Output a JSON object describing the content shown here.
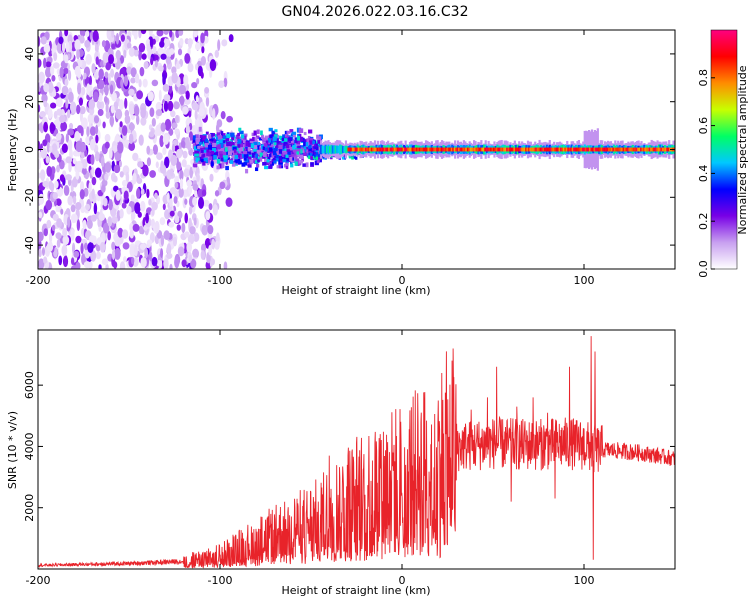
{
  "title": "GN04.2026.022.03.16.C32",
  "chart_data": [
    {
      "type": "heatmap",
      "name": "spectrogram",
      "xlabel": "Height of straight line (km)",
      "ylabel": "Frequency (Hz)",
      "xlim": [
        -200,
        150
      ],
      "ylim": [
        -50,
        50
      ],
      "xticks": [
        -200,
        -100,
        0,
        100
      ],
      "xtick_labels": [
        "-200",
        "-100",
        "0",
        "100"
      ],
      "yticks": [
        -40,
        -20,
        0,
        20,
        40
      ],
      "ytick_labels": [
        "-40",
        "-20",
        "0",
        "20",
        "40"
      ],
      "colorbar": {
        "label": "Normalized spectral amplitude",
        "range": [
          0,
          1
        ],
        "ticks": [
          0.0,
          0.2,
          0.4,
          0.6,
          0.8
        ],
        "tick_labels": [
          "0.0",
          "0.2",
          "0.4",
          "0.6",
          "0.8"
        ],
        "colors": [
          "#ffffff",
          "#c8a0f0",
          "#7800e6",
          "#0000ff",
          "#00c8ff",
          "#00ff64",
          "#c8ff00",
          "#ff8c00",
          "#ff0000",
          "#ff0080"
        ]
      },
      "description_regions": [
        {
          "x_range": [
            -200,
            -115
          ],
          "y_range": [
            -50,
            50
          ],
          "level": 0.1,
          "kind": "scattered noise"
        },
        {
          "x_range": [
            -115,
            -45
          ],
          "y_range": [
            -10,
            10
          ],
          "level": 0.3,
          "kind": "broad band"
        },
        {
          "x_range": [
            -45,
            150
          ],
          "y_range": [
            -2,
            2
          ],
          "level": 0.85,
          "kind": "narrow line at 0 Hz"
        }
      ]
    },
    {
      "type": "line",
      "name": "snr",
      "xlabel": "Height of straight line (km)",
      "ylabel": "SNR (10 * v/v)",
      "xlim": [
        -200,
        150
      ],
      "ylim": [
        0,
        7800
      ],
      "xticks": [
        -200,
        -100,
        0,
        100
      ],
      "xtick_labels": [
        "-200",
        "-100",
        "0",
        "100"
      ],
      "yticks": [
        2000,
        4000,
        6000
      ],
      "ytick_labels": [
        "2000",
        "4000",
        "6000"
      ],
      "color": "#e8232a",
      "envelope": {
        "x": [
          -200,
          -150,
          -120,
          -100,
          -80,
          -60,
          -45,
          -30,
          -15,
          0,
          15,
          30,
          50,
          70,
          90,
          100,
          105,
          110,
          130,
          150
        ],
        "y": [
          120,
          180,
          250,
          450,
          900,
          1300,
          1600,
          2200,
          2600,
          2900,
          3300,
          4000,
          4100,
          4050,
          4100,
          4050,
          3900,
          3900,
          3800,
          3600
        ]
      },
      "spikes": [
        {
          "x": -77,
          "y": 1700
        },
        {
          "x": -72,
          "y": 1800
        },
        {
          "x": -40,
          "y": 3700
        },
        {
          "x": -30,
          "y": 3400
        },
        {
          "x": -12,
          "y": 4400
        },
        {
          "x": -5,
          "y": 3800
        },
        {
          "x": 2,
          "y": 3400
        },
        {
          "x": 26,
          "y": 4300
        },
        {
          "x": 38,
          "y": 5200
        },
        {
          "x": 47,
          "y": 5600
        },
        {
          "x": 52,
          "y": 6600
        },
        {
          "x": 63,
          "y": 5300
        },
        {
          "x": 72,
          "y": 5600
        },
        {
          "x": 80,
          "y": 5100
        },
        {
          "x": 92,
          "y": 6600
        },
        {
          "x": 104,
          "y": 7600
        },
        {
          "x": 106,
          "y": 7100
        }
      ],
      "dips": [
        {
          "x": 105,
          "y": 300
        },
        {
          "x": 60,
          "y": 2200
        },
        {
          "x": 84,
          "y": 2300
        }
      ]
    }
  ]
}
